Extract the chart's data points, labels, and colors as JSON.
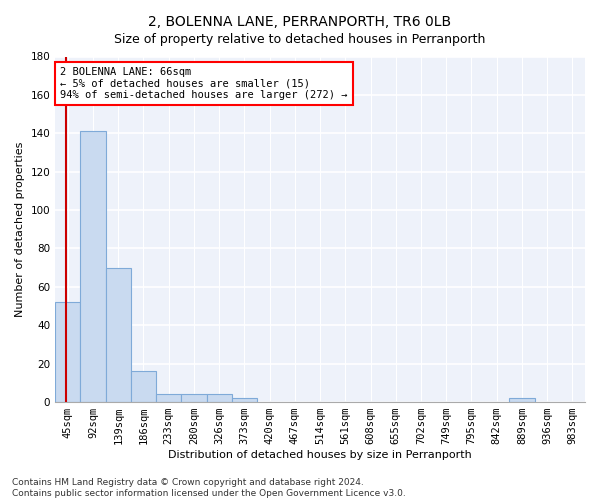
{
  "title": "2, BOLENNA LANE, PERRANPORTH, TR6 0LB",
  "subtitle": "Size of property relative to detached houses in Perranporth",
  "xlabel": "Distribution of detached houses by size in Perranporth",
  "ylabel": "Number of detached properties",
  "bins": [
    "45sqm",
    "92sqm",
    "139sqm",
    "186sqm",
    "233sqm",
    "280sqm",
    "326sqm",
    "373sqm",
    "420sqm",
    "467sqm",
    "514sqm",
    "561sqm",
    "608sqm",
    "655sqm",
    "702sqm",
    "749sqm",
    "795sqm",
    "842sqm",
    "889sqm",
    "936sqm",
    "983sqm"
  ],
  "values": [
    52,
    141,
    70,
    16,
    4,
    4,
    4,
    2,
    0,
    0,
    0,
    0,
    0,
    0,
    0,
    0,
    0,
    0,
    2,
    0,
    0
  ],
  "bar_color": "#c9daf0",
  "bar_edge_color": "#7faad8",
  "red_line_color": "#cc0000",
  "annotation_text": "2 BOLENNA LANE: 66sqm\n← 5% of detached houses are smaller (15)\n94% of semi-detached houses are larger (272) →",
  "annotation_box_color": "white",
  "annotation_box_edge_color": "red",
  "ylim": [
    0,
    180
  ],
  "yticks": [
    0,
    20,
    40,
    60,
    80,
    100,
    120,
    140,
    160,
    180
  ],
  "bg_color": "#eef2fa",
  "grid_color": "white",
  "footer_line1": "Contains HM Land Registry data © Crown copyright and database right 2024.",
  "footer_line2": "Contains public sector information licensed under the Open Government Licence v3.0.",
  "title_fontsize": 10,
  "subtitle_fontsize": 9,
  "xlabel_fontsize": 8,
  "ylabel_fontsize": 8,
  "tick_fontsize": 7.5,
  "footer_fontsize": 6.5,
  "annot_fontsize": 7.5
}
